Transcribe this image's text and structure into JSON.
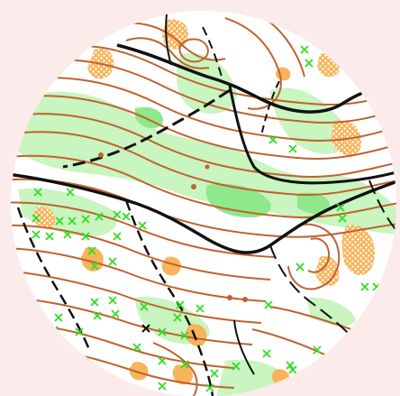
{
  "map": {
    "kind": "orienteering-map-circle-crop",
    "colors": {
      "background_outside": "#fcebeb",
      "map_background": "#ffffff",
      "contour": "#c0622f",
      "green_vegetation_light": "#c8f5c0",
      "green_vegetation_medium": "#8fe88a",
      "open_land": "#f7b45a",
      "open_land_stipple": "#ffffff",
      "track_path": "#111111",
      "feature_cross": "#33dd22",
      "special_cross": "#111111"
    },
    "legend_visible": false,
    "title_visible": false
  }
}
